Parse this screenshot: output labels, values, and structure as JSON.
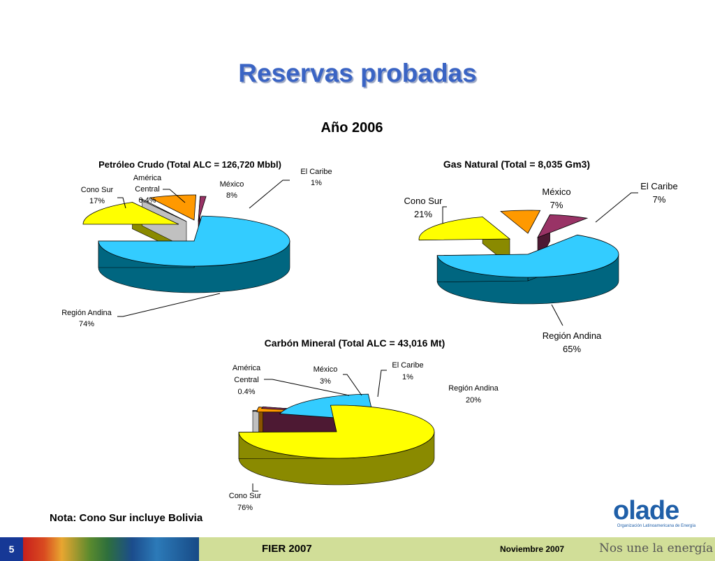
{
  "slide": {
    "title": "Reservas probadas",
    "subtitle": "Año 2006",
    "note": "Nota: Cono Sur incluye Bolivia"
  },
  "footer": {
    "page_number": "5",
    "event": "FIER 2007",
    "date": "Noviembre 2007",
    "slogan": "Nos une la energía"
  },
  "logo": {
    "name": "olade",
    "tagline": "Organización Latinoamericana de Energía"
  },
  "colors": {
    "title": "#3a64c4",
    "yellow": "#ffff00",
    "cyan": "#33ccff",
    "orange": "#ff9900",
    "maroon": "#993366",
    "white": "#ffffff",
    "footer_bar": "#d1de98",
    "page_badge": "#163896"
  },
  "chart_data": [
    {
      "type": "pie",
      "title": "Petróleo Crudo (Total ALC = 126,720 Mbbl)",
      "slices": [
        {
          "name": "Cono Sur",
          "label": "Cono Sur",
          "value_label": "17%",
          "value": 17,
          "color": "#ffff00"
        },
        {
          "name": "América Central",
          "label": "América Central",
          "value_label": "0.4%",
          "value": 0.4,
          "color": "#ffffff"
        },
        {
          "name": "México",
          "label": "México",
          "value_label": "8%",
          "value": 8,
          "color": "#ff9900"
        },
        {
          "name": "El Caribe",
          "label": "El Caribe",
          "value_label": "1%",
          "value": 1,
          "color": "#993366"
        },
        {
          "name": "Región Andina",
          "label": "Región Andina",
          "value_label": "74%",
          "value": 74,
          "color": "#33ccff"
        }
      ]
    },
    {
      "type": "pie",
      "title": "Gas Natural (Total = 8,035 Gm3)",
      "slices": [
        {
          "name": "Cono Sur",
          "label": "Cono Sur",
          "value_label": "21%",
          "value": 21,
          "color": "#ffff00"
        },
        {
          "name": "México",
          "label": "México",
          "value_label": "7%",
          "value": 7,
          "color": "#ff9900"
        },
        {
          "name": "El Caribe",
          "label": "El Caribe",
          "value_label": "7%",
          "value": 7,
          "color": "#993366"
        },
        {
          "name": "Región Andina",
          "label": "Región Andina",
          "value_label": "65%",
          "value": 65,
          "color": "#33ccff"
        }
      ]
    },
    {
      "type": "pie",
      "title": "Carbón Mineral (Total ALC = 43,016 Mt)",
      "slices": [
        {
          "name": "América Central",
          "label": "América Central",
          "value_label": "0.4%",
          "value": 0.4,
          "color": "#ffffff"
        },
        {
          "name": "México",
          "label": "México",
          "value_label": "3%",
          "value": 3,
          "color": "#ff9900"
        },
        {
          "name": "El Caribe",
          "label": "El Caribe",
          "value_label": "1%",
          "value": 1,
          "color": "#993366"
        },
        {
          "name": "Región Andina",
          "label": "Región Andina",
          "value_label": "20%",
          "value": 20,
          "color": "#33ccff"
        },
        {
          "name": "Cono Sur",
          "label": "Cono Sur",
          "value_label": "76%",
          "value": 76,
          "color": "#ffff00"
        }
      ]
    }
  ]
}
